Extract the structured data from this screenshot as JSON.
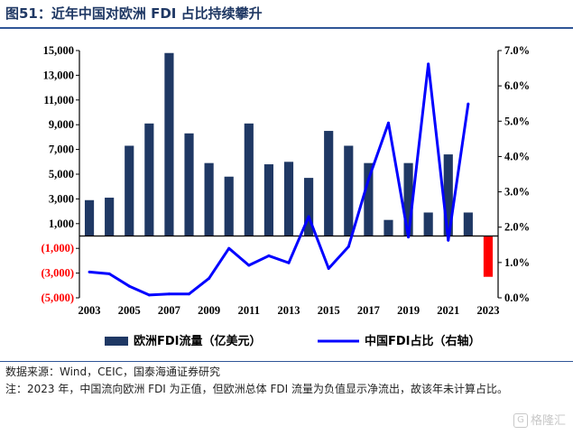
{
  "header": {
    "title": "图51：近年中国对欧洲 FDI 占比持续攀升"
  },
  "chart_data": {
    "type": "bar",
    "categories": [
      "2003",
      "2004",
      "2005",
      "2006",
      "2007",
      "2008",
      "2009",
      "2010",
      "2011",
      "2012",
      "2013",
      "2014",
      "2015",
      "2016",
      "2017",
      "2018",
      "2019",
      "2020",
      "2021",
      "2022",
      "2023"
    ],
    "series": [
      {
        "name": "欧洲FDI流量（亿美元）",
        "type": "bar",
        "axis": "left",
        "color": "#1f3864",
        "negative_color": "#ff0000",
        "values": [
          2900,
          3100,
          7300,
          9100,
          14800,
          8300,
          5900,
          4800,
          9100,
          5800,
          6000,
          4700,
          8500,
          7300,
          5900,
          1300,
          5900,
          1900,
          6600,
          1900,
          -3300
        ]
      },
      {
        "name": "中国FDI占比（右轴）",
        "type": "line",
        "axis": "right",
        "color": "#0000ff",
        "values": [
          0.0073,
          0.0068,
          0.0033,
          0.0008,
          0.0011,
          0.0011,
          0.0055,
          0.014,
          0.0092,
          0.0119,
          0.0099,
          0.023,
          0.0083,
          0.0145,
          0.0335,
          0.0495,
          0.0172,
          0.0662,
          0.0163,
          0.0549,
          null
        ]
      }
    ],
    "left_axis": {
      "ylim": [
        -5000,
        15000
      ],
      "ticks": [
        15000,
        13000,
        11000,
        9000,
        7000,
        5000,
        3000,
        1000,
        -1000,
        -3000,
        -5000
      ],
      "tick_labels": [
        "15,000",
        "13,000",
        "11,000",
        "9,000",
        "7,000",
        "5,000",
        "3,000",
        "1,000",
        "(1,000)",
        "(3,000)",
        "(5,000)"
      ]
    },
    "right_axis": {
      "ylim": [
        0,
        0.07
      ],
      "ticks": [
        0.07,
        0.06,
        0.05,
        0.04,
        0.03,
        0.02,
        0.01,
        0
      ],
      "tick_labels": [
        "7.0%",
        "6.0%",
        "5.0%",
        "4.0%",
        "3.0%",
        "2.0%",
        "1.0%",
        "0.0%"
      ]
    },
    "x_tick_labels": [
      "2003",
      "2005",
      "2007",
      "2009",
      "2011",
      "2013",
      "2015",
      "2017",
      "2019",
      "2021",
      "2023"
    ],
    "legend": "bottom",
    "grid": false
  },
  "footnotes": {
    "source": "数据来源：Wind，CEIC，国泰海通证券研究",
    "note": "注：2023 年，中国流向欧洲 FDI 为正值，但欧洲总体 FDI 流量为负值显示净流出，故该年未计算占比。"
  },
  "watermark": {
    "text": "格隆汇",
    "icon": "glh-logo-icon"
  }
}
